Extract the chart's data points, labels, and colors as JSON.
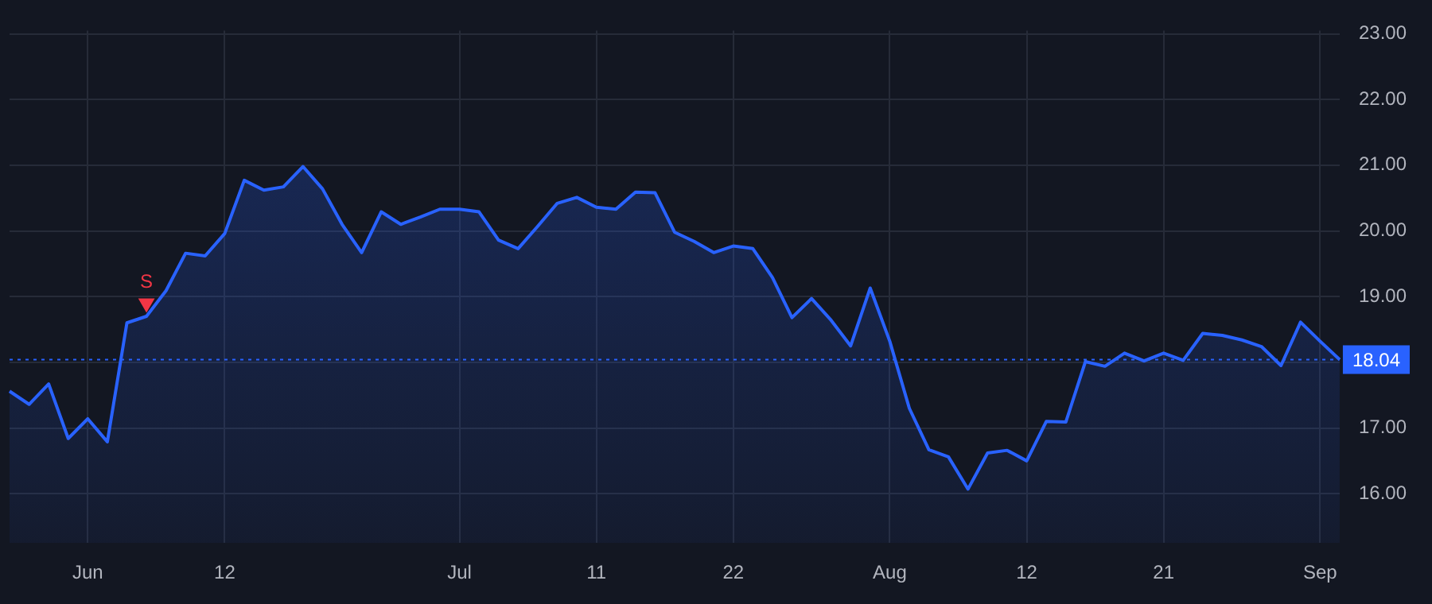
{
  "chart_data": {
    "type": "area",
    "categories": [
      null,
      null,
      null,
      null,
      "Jun",
      null,
      null,
      null,
      null,
      null,
      null,
      "12",
      null,
      null,
      null,
      null,
      null,
      null,
      null,
      null,
      null,
      null,
      null,
      "Jul",
      null,
      null,
      null,
      null,
      null,
      null,
      "11",
      null,
      null,
      null,
      null,
      null,
      null,
      "22",
      null,
      null,
      null,
      null,
      null,
      null,
      null,
      "Aug",
      null,
      null,
      null,
      null,
      null,
      null,
      "12",
      null,
      null,
      null,
      null,
      null,
      null,
      "21",
      null,
      null,
      null,
      null,
      null,
      null,
      null,
      "Sep",
      null
    ],
    "series": [
      {
        "color": "#2962ff",
        "values": [
          17.56,
          17.36,
          17.67,
          16.84,
          17.14,
          16.79,
          18.6,
          18.7,
          19.09,
          19.66,
          19.62,
          19.96,
          20.77,
          20.62,
          20.67,
          20.98,
          20.64,
          20.1,
          19.67,
          20.29,
          20.1,
          20.21,
          20.33,
          20.33,
          20.29,
          19.86,
          19.73,
          20.07,
          20.42,
          20.51,
          20.36,
          20.33,
          20.59,
          20.58,
          19.98,
          19.84,
          19.67,
          19.77,
          19.73,
          19.29,
          18.68,
          18.97,
          18.64,
          18.25,
          19.13,
          18.32,
          17.3,
          16.67,
          16.56,
          16.07,
          16.62,
          16.66,
          16.5,
          17.1,
          17.09,
          18.01,
          17.94,
          18.14,
          18.02,
          18.14,
          18.03,
          18.44,
          18.41,
          18.34,
          18.24,
          17.95,
          18.61,
          18.32,
          18.04
        ]
      },
      {
        "type": "scatter",
        "color": "#f23645",
        "marker": "triangle",
        "values": [
          null,
          null,
          null,
          null,
          null,
          null,
          null,
          18.9,
          null,
          null,
          null,
          null,
          null,
          null,
          null,
          null,
          null,
          null,
          null,
          null,
          null,
          null,
          null,
          null,
          null,
          null,
          null,
          null,
          null,
          null,
          null,
          null,
          null,
          null,
          null,
          null,
          null,
          null,
          null,
          null,
          null,
          null,
          null,
          null,
          null,
          null,
          null,
          null,
          null,
          null,
          null,
          null,
          null,
          null,
          null,
          null,
          null,
          null,
          null,
          null,
          null,
          null,
          null,
          null,
          null,
          null,
          null,
          null,
          null
        ],
        "value_labels": [
          null,
          null,
          null,
          null,
          null,
          null,
          null,
          "S",
          null,
          null,
          null,
          null,
          null,
          null,
          null,
          null,
          null,
          null,
          null,
          null,
          null,
          null,
          null,
          null,
          null,
          null,
          null,
          null,
          null,
          null,
          null,
          null,
          null,
          null,
          null,
          null,
          null,
          null,
          null,
          null,
          null,
          null,
          null,
          null,
          null,
          null,
          null,
          null,
          null,
          null,
          null,
          null,
          null,
          null,
          null,
          null,
          null,
          null,
          null,
          null,
          null,
          null,
          null,
          null,
          null,
          null,
          null,
          null,
          null
        ]
      }
    ],
    "ylim": [
      15.25,
      23.05
    ],
    "yticks": [
      {
        "value": 16,
        "label": "16.00"
      },
      {
        "value": 17,
        "label": "17.00"
      },
      {
        "value": 18,
        "label": null
      },
      {
        "value": 19,
        "label": "19.00"
      },
      {
        "value": 20,
        "label": "20.00"
      },
      {
        "value": 21,
        "label": "21.00"
      },
      {
        "value": 22,
        "label": "22.00"
      },
      {
        "value": 23,
        "label": "23.00"
      }
    ],
    "ref_lines": [
      {
        "axis": "y",
        "value": 18.04,
        "label": "18.04",
        "color": "#2962ff",
        "line_style": "dotted"
      }
    ],
    "grid": true,
    "legend": false,
    "marker": "none",
    "line_style": "solid"
  }
}
